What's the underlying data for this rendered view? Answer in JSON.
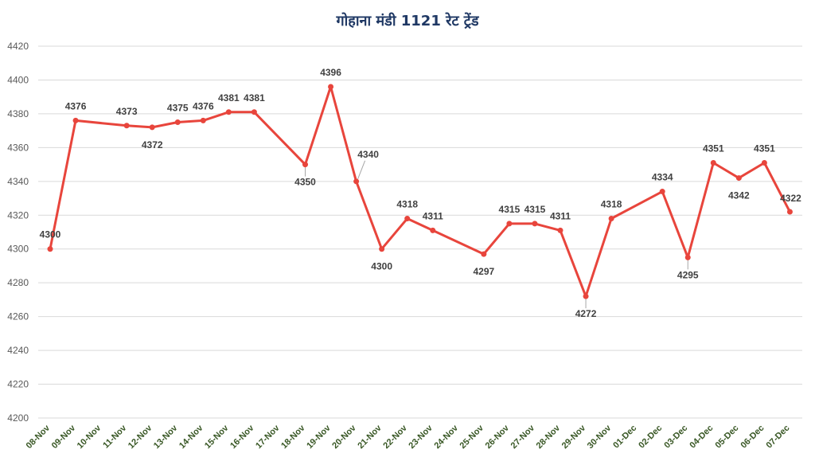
{
  "chart_data": {
    "type": "line",
    "title": "गोहाना मंडी 1121 रेट ट्रेंड",
    "xlabel": "",
    "ylabel": "",
    "ylim": [
      4200,
      4420
    ],
    "yticks": [
      4200,
      4220,
      4240,
      4260,
      4280,
      4300,
      4320,
      4340,
      4360,
      4380,
      4400,
      4420
    ],
    "grid": true,
    "legend": "none",
    "line_color": "#e8453c",
    "categories": [
      "08-Nov",
      "09-Nov",
      "10-Nov",
      "11-Nov",
      "12-Nov",
      "13-Nov",
      "14-Nov",
      "15-Nov",
      "16-Nov",
      "17-Nov",
      "18-Nov",
      "19-Nov",
      "20-Nov",
      "21-Nov",
      "22-Nov",
      "23-Nov",
      "24-Nov",
      "25-Nov",
      "26-Nov",
      "27-Nov",
      "28-Nov",
      "29-Nov",
      "30-Nov",
      "01-Dec",
      "02-Dec",
      "03-Dec",
      "04-Dec",
      "05-Dec",
      "06-Dec",
      "07-Dec"
    ],
    "series": [
      {
        "points": [
          {
            "x": "08-Nov",
            "y": 4300
          },
          {
            "x": "09-Nov",
            "y": 4376
          },
          {
            "x": "11-Nov",
            "y": 4373
          },
          {
            "x": "12-Nov",
            "y": 4372
          },
          {
            "x": "13-Nov",
            "y": 4375
          },
          {
            "x": "14-Nov",
            "y": 4376
          },
          {
            "x": "15-Nov",
            "y": 4381
          },
          {
            "x": "16-Nov",
            "y": 4381
          },
          {
            "x": "18-Nov",
            "y": 4350
          },
          {
            "x": "19-Nov",
            "y": 4396
          },
          {
            "x": "20-Nov",
            "y": 4340
          },
          {
            "x": "21-Nov",
            "y": 4300
          },
          {
            "x": "22-Nov",
            "y": 4318
          },
          {
            "x": "23-Nov",
            "y": 4311
          },
          {
            "x": "25-Nov",
            "y": 4297
          },
          {
            "x": "26-Nov",
            "y": 4315
          },
          {
            "x": "27-Nov",
            "y": 4315
          },
          {
            "x": "28-Nov",
            "y": 4311
          },
          {
            "x": "29-Nov",
            "y": 4272
          },
          {
            "x": "30-Nov",
            "y": 4318
          },
          {
            "x": "02-Dec",
            "y": 4334
          },
          {
            "x": "03-Dec",
            "y": 4295
          },
          {
            "x": "04-Dec",
            "y": 4351
          },
          {
            "x": "05-Dec",
            "y": 4342
          },
          {
            "x": "06-Dec",
            "y": 4351
          },
          {
            "x": "07-Dec",
            "y": 4322
          }
        ]
      }
    ]
  }
}
